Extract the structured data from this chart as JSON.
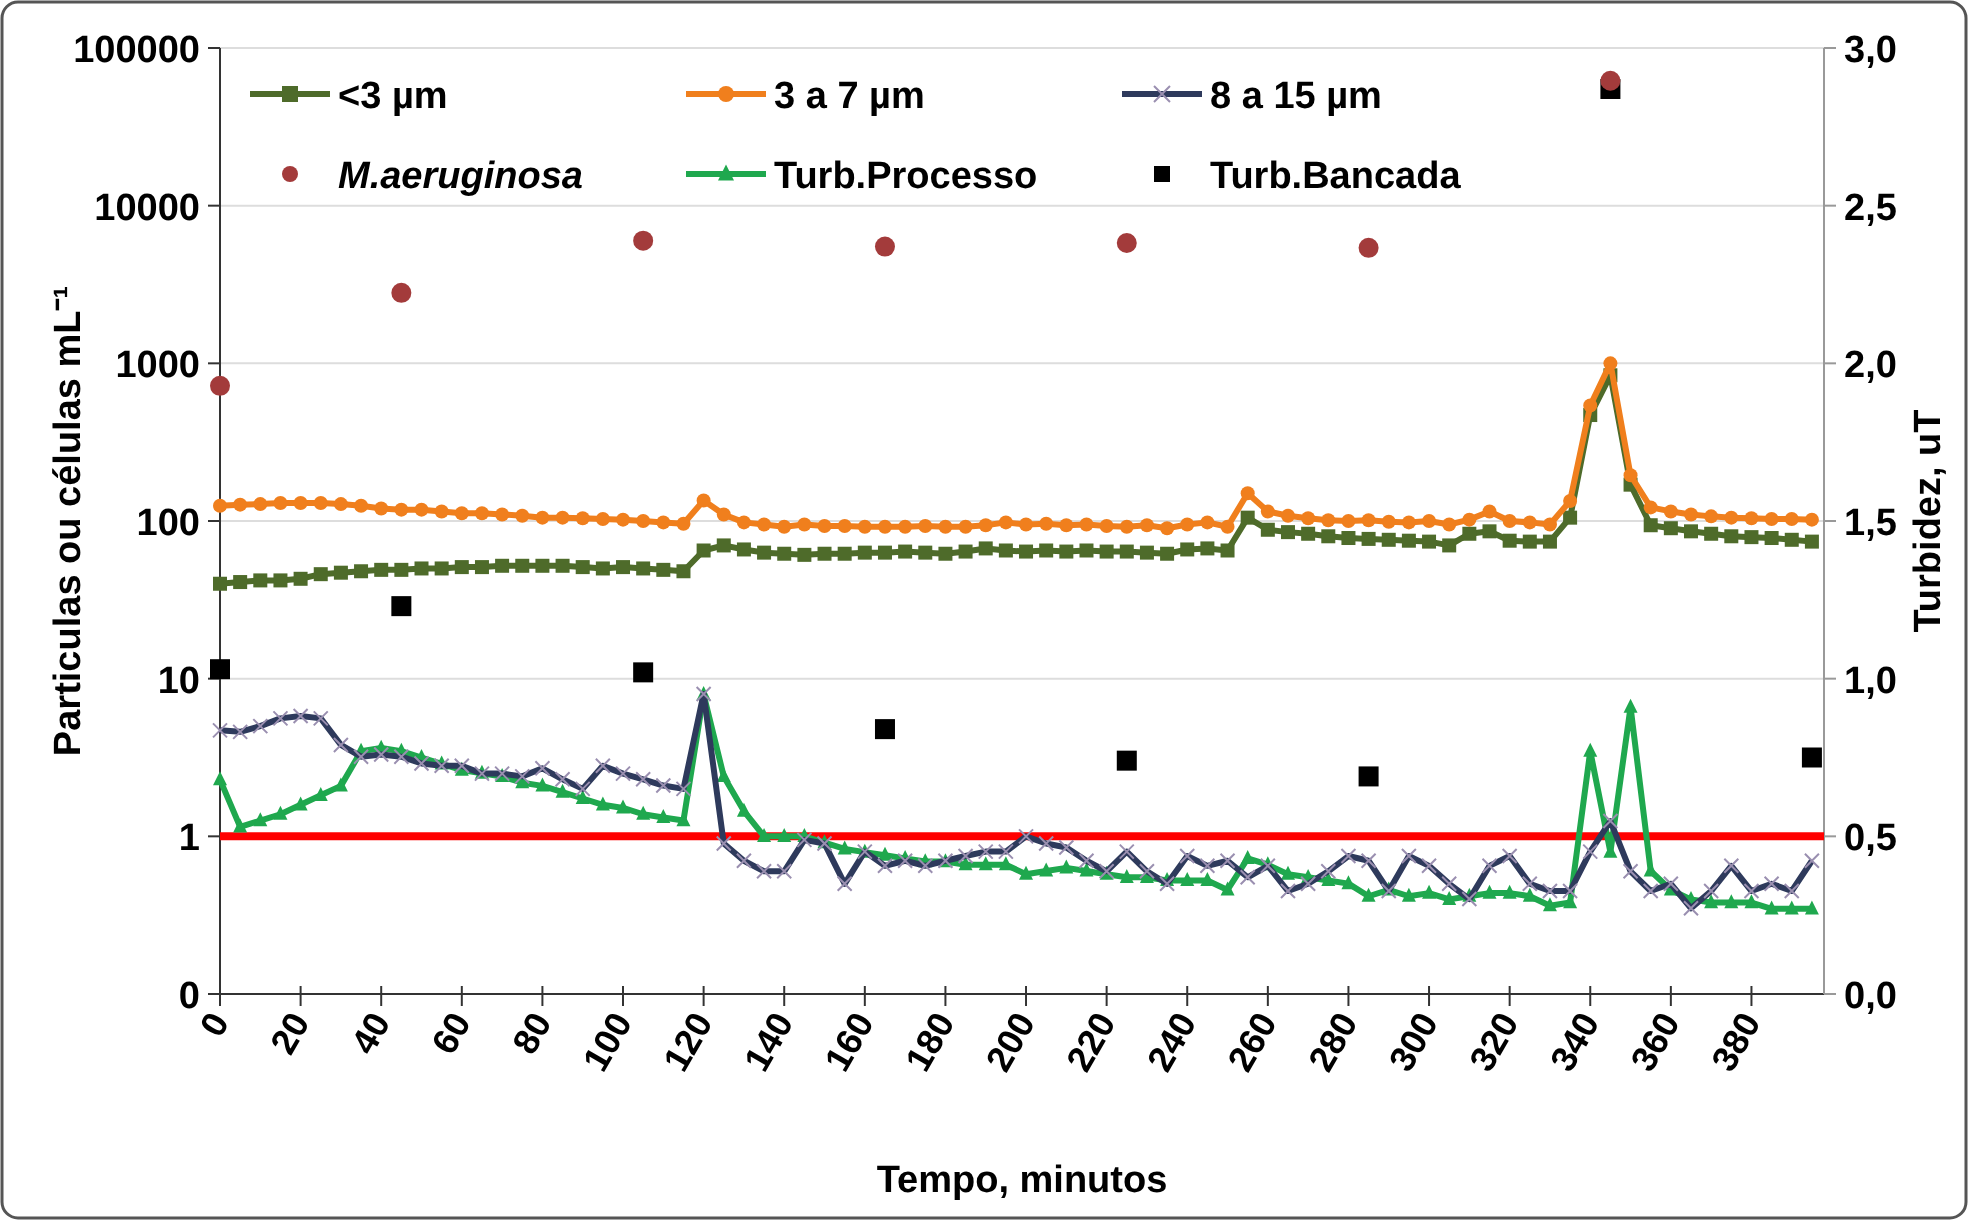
{
  "chart_data": {
    "type": "line",
    "xlabel": "Tempo, minutos",
    "ylabel": "Particulas ou células mL⁻¹",
    "y2label": "Turbidez, uT",
    "x": [
      0,
      5,
      10,
      15,
      20,
      25,
      30,
      35,
      40,
      45,
      50,
      55,
      60,
      65,
      70,
      75,
      80,
      85,
      90,
      95,
      100,
      105,
      110,
      115,
      120,
      125,
      130,
      135,
      140,
      145,
      150,
      155,
      160,
      165,
      170,
      175,
      180,
      185,
      190,
      195,
      200,
      205,
      210,
      215,
      220,
      225,
      230,
      235,
      240,
      245,
      250,
      255,
      260,
      265,
      270,
      275,
      280,
      285,
      290,
      295,
      300,
      305,
      310,
      315,
      320,
      325,
      330,
      335,
      340,
      345,
      350,
      355,
      360,
      365,
      370,
      375,
      380,
      385,
      390,
      395
    ],
    "xlim": [
      0,
      398
    ],
    "xticks": [
      0,
      20,
      40,
      60,
      80,
      100,
      120,
      140,
      160,
      180,
      200,
      220,
      240,
      260,
      280,
      300,
      320,
      340,
      360,
      380
    ],
    "log": "y",
    "ylim": [
      0.1,
      100000
    ],
    "yticks": [
      {
        "value": 0.1,
        "label": "0"
      },
      1,
      10,
      100,
      1000,
      10000,
      100000
    ],
    "y2lim": [
      0,
      3
    ],
    "y2ticks": [
      {
        "value": 0,
        "label": "0,0"
      },
      {
        "value": 0.5,
        "label": "0,5"
      },
      {
        "value": 1,
        "label": "1,0"
      },
      {
        "value": 1.5,
        "label": "1,5"
      },
      {
        "value": 2,
        "label": "2,0"
      },
      {
        "value": 2.5,
        "label": "2,5"
      },
      {
        "value": 3,
        "label": "3,0"
      }
    ],
    "grid": "y",
    "legend": "top",
    "ref_lines": [
      {
        "axis": "y",
        "value": 1,
        "color": "#ff0000"
      }
    ],
    "series": [
      {
        "name": "<3 µm",
        "color": "#4e6b2a",
        "marker": "square",
        "values": [
          40,
          41,
          42,
          42,
          43,
          46,
          47,
          48,
          49,
          49,
          50,
          50,
          51,
          51,
          52,
          52,
          52,
          52,
          51,
          50,
          51,
          50,
          49,
          48,
          65,
          70,
          66,
          63,
          62,
          61,
          62,
          62,
          63,
          63,
          64,
          63,
          62,
          64,
          67,
          65,
          64,
          65,
          64,
          65,
          64,
          64,
          63,
          62,
          66,
          67,
          65,
          105,
          88,
          85,
          83,
          80,
          78,
          77,
          76,
          75,
          74,
          70,
          83,
          86,
          75,
          74,
          74,
          105,
          470,
          840,
          170,
          94,
          90,
          86,
          83,
          80,
          79,
          78,
          76,
          74
        ]
      },
      {
        "name": "3 a 7 µm",
        "color": "#f07f1d",
        "marker": "circle",
        "values": [
          125,
          127,
          128,
          130,
          130,
          130,
          128,
          125,
          120,
          118,
          118,
          115,
          112,
          112,
          110,
          108,
          105,
          105,
          104,
          103,
          102,
          100,
          98,
          96,
          135,
          110,
          98,
          95,
          92,
          95,
          93,
          93,
          92,
          92,
          92,
          93,
          92,
          92,
          94,
          98,
          95,
          96,
          94,
          95,
          93,
          92,
          94,
          90,
          95,
          98,
          92,
          150,
          115,
          108,
          104,
          101,
          100,
          101,
          99,
          98,
          100,
          95,
          102,
          115,
          100,
          98,
          95,
          134,
          540,
          1000,
          195,
          122,
          115,
          110,
          107,
          105,
          104,
          103,
          103,
          102
        ]
      },
      {
        "name": "8 a 15 µm",
        "color": "#2e3a5c",
        "marker": "cross",
        "values": [
          4.7,
          4.6,
          5.0,
          5.6,
          5.8,
          5.6,
          3.8,
          3.2,
          3.3,
          3.2,
          2.9,
          2.8,
          2.8,
          2.5,
          2.5,
          2.4,
          2.7,
          2.3,
          2.0,
          2.8,
          2.5,
          2.3,
          2.1,
          2.0,
          8.0,
          0.9,
          0.7,
          0.6,
          0.6,
          0.95,
          0.9,
          0.5,
          0.8,
          0.65,
          0.7,
          0.65,
          0.7,
          0.75,
          0.8,
          0.8,
          1.0,
          0.9,
          0.85,
          0.7,
          0.6,
          0.8,
          0.6,
          0.5,
          0.75,
          0.65,
          0.7,
          0.55,
          0.65,
          0.45,
          0.5,
          0.6,
          0.75,
          0.7,
          0.45,
          0.75,
          0.65,
          0.5,
          0.4,
          0.65,
          0.75,
          0.5,
          0.45,
          0.45,
          0.8,
          1.25,
          0.6,
          0.45,
          0.5,
          0.35,
          0.45,
          0.65,
          0.45,
          0.5,
          0.45,
          0.7
        ]
      },
      {
        "name": "M.aeruginosa",
        "type": "scatter",
        "color": "#a33b3b",
        "marker": "circle",
        "x": [
          0,
          45,
          105,
          165,
          225,
          285,
          345
        ],
        "values": [
          720,
          2800,
          6000,
          5500,
          5800,
          5400,
          62000
        ]
      },
      {
        "name": "Turb.Processo",
        "color": "#1fa84e",
        "marker": "triangle",
        "axis": "y2",
        "values": [
          0.68,
          0.53,
          0.55,
          0.57,
          0.6,
          0.63,
          0.66,
          0.77,
          0.78,
          0.77,
          0.75,
          0.73,
          0.71,
          0.7,
          0.69,
          0.67,
          0.66,
          0.64,
          0.62,
          0.6,
          0.59,
          0.57,
          0.56,
          0.55,
          0.95,
          0.69,
          0.58,
          0.5,
          0.5,
          0.5,
          0.48,
          0.46,
          0.45,
          0.44,
          0.43,
          0.42,
          0.42,
          0.41,
          0.41,
          0.41,
          0.38,
          0.39,
          0.4,
          0.39,
          0.38,
          0.37,
          0.37,
          0.36,
          0.36,
          0.36,
          0.33,
          0.43,
          0.41,
          0.38,
          0.37,
          0.36,
          0.35,
          0.31,
          0.33,
          0.31,
          0.32,
          0.3,
          0.31,
          0.32,
          0.32,
          0.31,
          0.28,
          0.29,
          0.77,
          0.45,
          0.91,
          0.39,
          0.33,
          0.3,
          0.29,
          0.29,
          0.29,
          0.27,
          0.27,
          0.27
        ]
      },
      {
        "name": "Turb.Bancada",
        "type": "scatter",
        "color": "#000000",
        "marker": "square",
        "axis": "y2",
        "x": [
          0,
          45,
          105,
          165,
          225,
          285,
          345,
          395
        ],
        "values": [
          1.03,
          1.23,
          1.02,
          0.84,
          0.74,
          0.69,
          2.87,
          0.75
        ]
      }
    ]
  }
}
